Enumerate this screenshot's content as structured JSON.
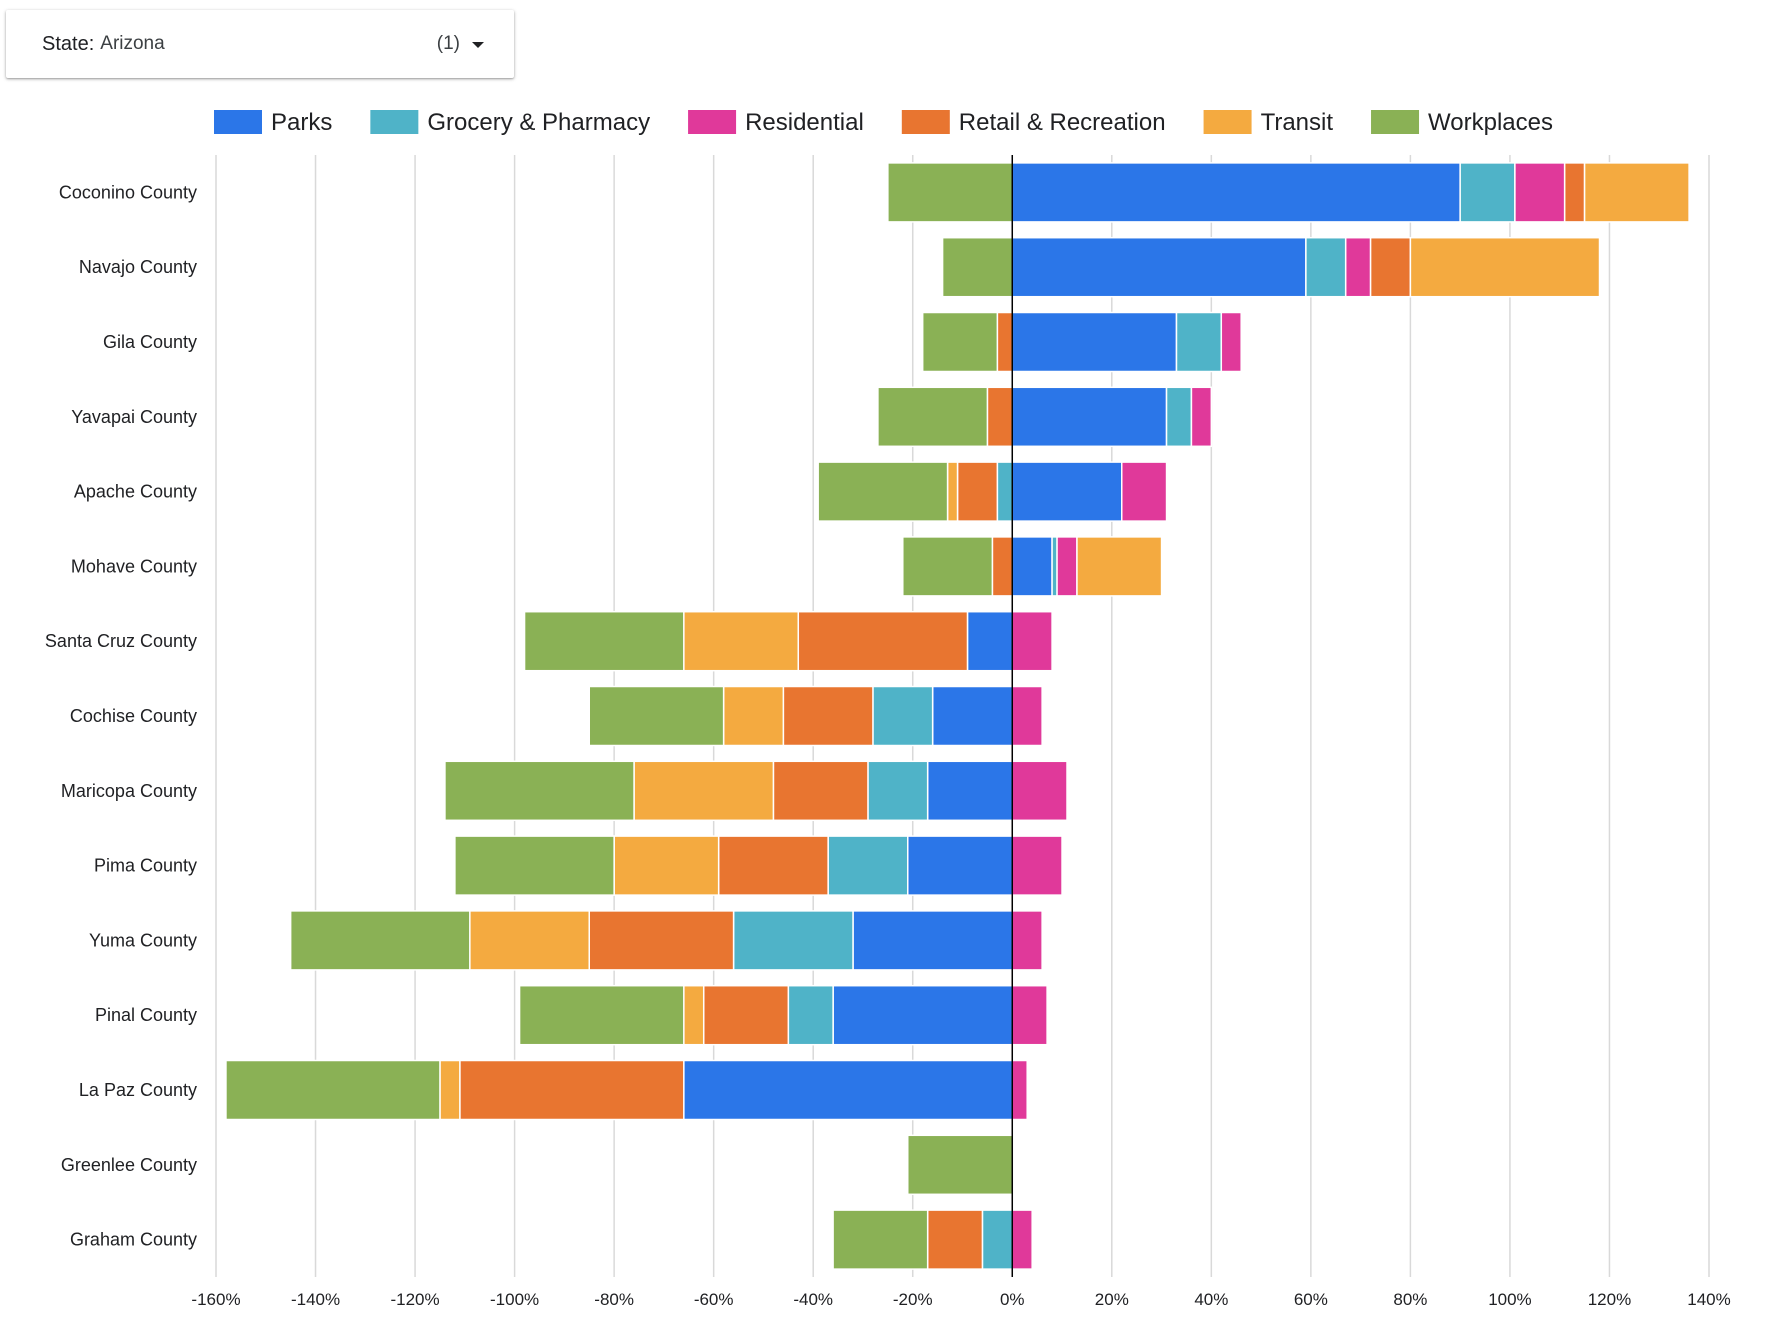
{
  "filter": {
    "label": "State:",
    "value": "Arizona",
    "count": "(1)"
  },
  "chart_data": {
    "type": "bar",
    "orientation": "horizontal",
    "stacked": true,
    "x_unit": "%",
    "xlim": [
      -160,
      140
    ],
    "x_ticks": [
      -160,
      -140,
      -120,
      -100,
      -80,
      -60,
      -40,
      -20,
      0,
      20,
      40,
      60,
      80,
      100,
      120,
      140
    ],
    "x_tick_labels": [
      "-160%",
      "-140%",
      "-120%",
      "-100%",
      "-80%",
      "-60%",
      "-40%",
      "-20%",
      "0%",
      "20%",
      "40%",
      "60%",
      "80%",
      "100%",
      "120%",
      "140%"
    ],
    "grid": true,
    "legend_position": "top",
    "categories": [
      "Coconino County",
      "Navajo County",
      "Gila County",
      "Yavapai County",
      "Apache County",
      "Mohave County",
      "Santa Cruz County",
      "Cochise County",
      "Maricopa County",
      "Pima County",
      "Yuma County",
      "Pinal County",
      "La Paz County",
      "Greenlee County",
      "Graham County"
    ],
    "series": [
      {
        "name": "Parks",
        "color": "#2b76e8",
        "values": [
          90,
          59,
          33,
          31,
          22,
          8,
          -9,
          -16,
          -17,
          -21,
          -32,
          -36,
          -66,
          0,
          0
        ]
      },
      {
        "name": "Grocery & Pharmacy",
        "color": "#4fb3c8",
        "values": [
          11,
          8,
          9,
          5,
          -3,
          1,
          0,
          -12,
          -12,
          -16,
          -24,
          -9,
          0,
          0,
          -6
        ]
      },
      {
        "name": "Residential",
        "color": "#e0399a",
        "values": [
          10,
          5,
          4,
          4,
          9,
          4,
          8,
          6,
          11,
          10,
          6,
          7,
          3,
          0,
          4
        ]
      },
      {
        "name": "Retail & Recreation",
        "color": "#e87530",
        "values": [
          4,
          8,
          -3,
          -5,
          -8,
          -4,
          -34,
          -18,
          -19,
          -22,
          -29,
          -17,
          -45,
          0,
          -11
        ]
      },
      {
        "name": "Transit",
        "color": "#f4aa40",
        "values": [
          21,
          38,
          0,
          0,
          -2,
          17,
          -23,
          -12,
          -28,
          -21,
          -24,
          -4,
          -4,
          0,
          0
        ]
      },
      {
        "name": "Workplaces",
        "color": "#8ab155",
        "values": [
          -25,
          -14,
          -15,
          -22,
          -26,
          -18,
          -32,
          -27,
          -38,
          -32,
          -36,
          -33,
          -43,
          -21,
          -19
        ]
      }
    ]
  }
}
